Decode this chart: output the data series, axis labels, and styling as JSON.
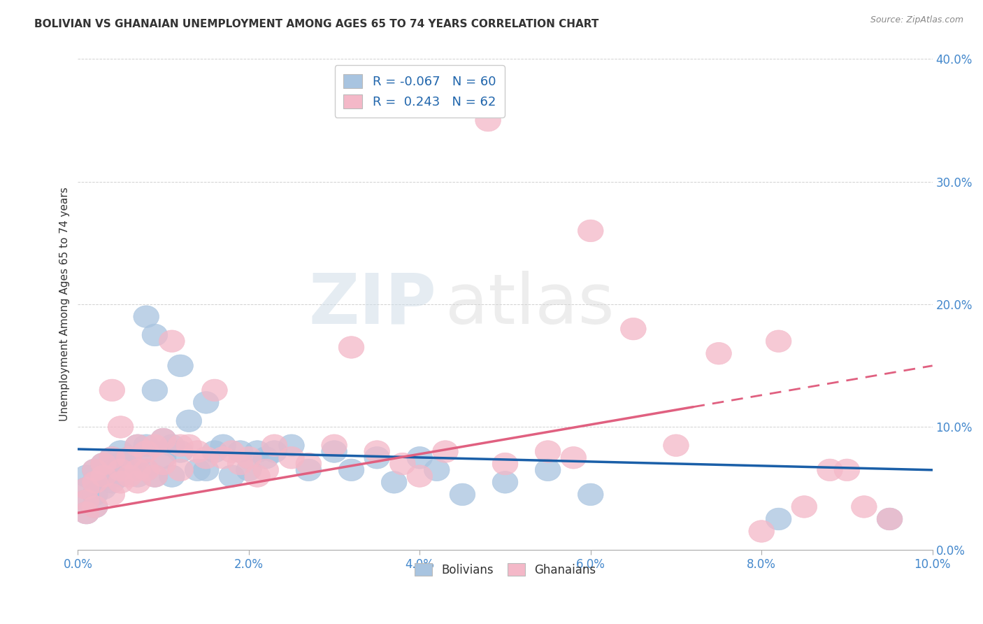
{
  "title": "BOLIVIAN VS GHANAIAN UNEMPLOYMENT AMONG AGES 65 TO 74 YEARS CORRELATION CHART",
  "source": "Source: ZipAtlas.com",
  "ylabel": "Unemployment Among Ages 65 to 74 years",
  "xlim": [
    0.0,
    0.1
  ],
  "ylim": [
    0.0,
    0.4
  ],
  "xticks": [
    0.0,
    0.01,
    0.02,
    0.03,
    0.04,
    0.05,
    0.06,
    0.07,
    0.08,
    0.09,
    0.1
  ],
  "yticks": [
    0.0,
    0.1,
    0.2,
    0.3,
    0.4
  ],
  "R_blue": -0.067,
  "N_blue": 60,
  "R_pink": 0.243,
  "N_pink": 62,
  "blue_color": "#a8c4e0",
  "pink_color": "#f4b8c8",
  "blue_line_color": "#1a5fa8",
  "pink_line_color": "#e06080",
  "watermark_zip": "ZIP",
  "watermark_atlas": "atlas",
  "legend_label_blue": "Bolivians",
  "legend_label_pink": "Ghanaians",
  "blue_line_x0": 0.0,
  "blue_line_y0": 0.082,
  "blue_line_x1": 0.1,
  "blue_line_y1": 0.065,
  "pink_line_x0": 0.0,
  "pink_line_y0": 0.03,
  "pink_line_x1": 0.1,
  "pink_line_y1": 0.15,
  "bolivians_x": [
    0.001,
    0.001,
    0.001,
    0.001,
    0.002,
    0.002,
    0.002,
    0.002,
    0.003,
    0.003,
    0.003,
    0.004,
    0.004,
    0.004,
    0.005,
    0.005,
    0.005,
    0.006,
    0.006,
    0.007,
    0.007,
    0.007,
    0.008,
    0.008,
    0.008,
    0.009,
    0.009,
    0.009,
    0.01,
    0.01,
    0.011,
    0.011,
    0.012,
    0.012,
    0.013,
    0.014,
    0.015,
    0.015,
    0.016,
    0.017,
    0.018,
    0.019,
    0.02,
    0.021,
    0.022,
    0.023,
    0.025,
    0.027,
    0.03,
    0.032,
    0.035,
    0.037,
    0.04,
    0.042,
    0.045,
    0.05,
    0.055,
    0.06,
    0.082,
    0.095
  ],
  "bolivians_y": [
    0.06,
    0.05,
    0.04,
    0.03,
    0.065,
    0.055,
    0.045,
    0.035,
    0.07,
    0.06,
    0.05,
    0.075,
    0.065,
    0.055,
    0.08,
    0.07,
    0.06,
    0.075,
    0.065,
    0.085,
    0.075,
    0.06,
    0.19,
    0.085,
    0.065,
    0.175,
    0.13,
    0.06,
    0.09,
    0.075,
    0.085,
    0.06,
    0.15,
    0.08,
    0.105,
    0.065,
    0.12,
    0.065,
    0.08,
    0.085,
    0.06,
    0.08,
    0.065,
    0.08,
    0.075,
    0.08,
    0.085,
    0.065,
    0.08,
    0.065,
    0.075,
    0.055,
    0.075,
    0.065,
    0.045,
    0.055,
    0.065,
    0.045,
    0.025,
    0.025
  ],
  "ghanaians_x": [
    0.001,
    0.001,
    0.001,
    0.002,
    0.002,
    0.002,
    0.003,
    0.003,
    0.004,
    0.004,
    0.004,
    0.005,
    0.005,
    0.005,
    0.006,
    0.006,
    0.007,
    0.007,
    0.007,
    0.008,
    0.008,
    0.009,
    0.009,
    0.01,
    0.01,
    0.011,
    0.012,
    0.012,
    0.013,
    0.014,
    0.015,
    0.016,
    0.017,
    0.018,
    0.019,
    0.02,
    0.021,
    0.022,
    0.023,
    0.025,
    0.027,
    0.03,
    0.032,
    0.035,
    0.038,
    0.04,
    0.043,
    0.048,
    0.05,
    0.055,
    0.058,
    0.06,
    0.065,
    0.07,
    0.075,
    0.08,
    0.082,
    0.085,
    0.088,
    0.09,
    0.092,
    0.095
  ],
  "ghanaians_y": [
    0.05,
    0.04,
    0.03,
    0.065,
    0.055,
    0.035,
    0.07,
    0.06,
    0.13,
    0.075,
    0.045,
    0.1,
    0.065,
    0.055,
    0.075,
    0.06,
    0.085,
    0.065,
    0.055,
    0.08,
    0.065,
    0.085,
    0.06,
    0.09,
    0.07,
    0.17,
    0.085,
    0.065,
    0.085,
    0.08,
    0.075,
    0.13,
    0.075,
    0.08,
    0.07,
    0.075,
    0.06,
    0.065,
    0.085,
    0.075,
    0.07,
    0.085,
    0.165,
    0.08,
    0.07,
    0.06,
    0.08,
    0.35,
    0.07,
    0.08,
    0.075,
    0.26,
    0.18,
    0.085,
    0.16,
    0.015,
    0.17,
    0.035,
    0.065,
    0.065,
    0.035,
    0.025
  ]
}
